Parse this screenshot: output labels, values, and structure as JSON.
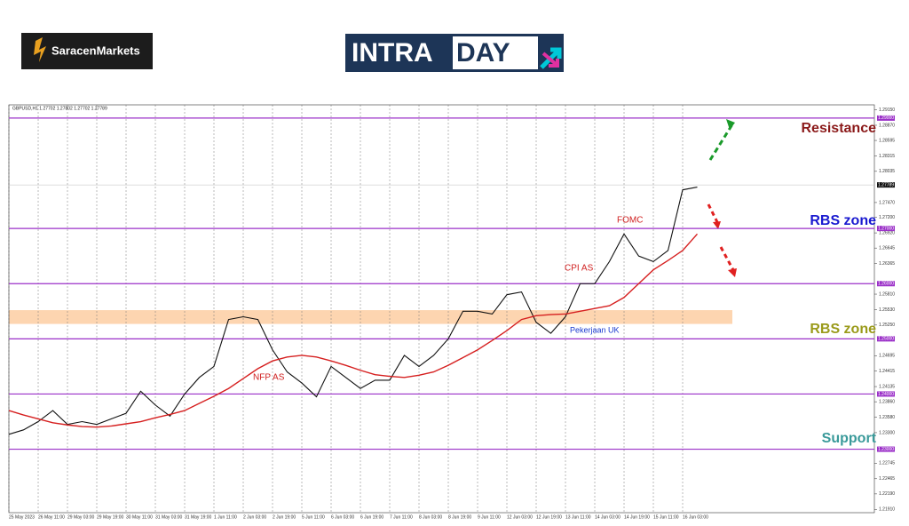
{
  "brand": "SaracenMarkets",
  "banner": {
    "left": "INTRA",
    "right": "DAY"
  },
  "chart_data": {
    "type": "line",
    "header": "GBPUSD,H1  1.27702 1.27802 1.27702 1.27789",
    "categories": [
      "25 May 2023",
      null,
      "26 May 11:00",
      null,
      "29 May 03:00",
      null,
      "29 May 19:00",
      null,
      "30 May 11:00",
      null,
      "31 May 03:00",
      null,
      "31 May 19:00",
      null,
      "1 Jun 11:00",
      null,
      "2 Jun 03:00",
      null,
      "2 Jun 19:00",
      null,
      "5 Jun 11:00",
      null,
      "6 Jun 03:00",
      null,
      "6 Jun 19:00",
      null,
      "7 Jun 11:00",
      null,
      "8 Jun 03:00",
      null,
      "8 Jun 19:00",
      null,
      "9 Jun 11:00",
      null,
      "12 Jun 03:00",
      null,
      "12 Jun 19:00",
      null,
      "13 Jun 11:00",
      null,
      "14 Jun 03:00",
      null,
      "14 Jun 19:00",
      null,
      "15 Jun 11:00",
      null,
      "16 Jun 03:00",
      null
    ],
    "series": [
      {
        "color": "#111111",
        "values": [
          1.2327,
          1.2335,
          1.235,
          1.237,
          1.2345,
          1.235,
          1.2345,
          1.2355,
          1.2365,
          1.2405,
          1.238,
          1.236,
          1.24,
          1.243,
          1.245,
          1.2535,
          1.254,
          1.2535,
          1.248,
          1.244,
          1.242,
          1.2395,
          1.245,
          1.243,
          1.241,
          1.2425,
          1.2425,
          1.247,
          1.245,
          1.247,
          1.25,
          1.255,
          1.255,
          1.2545,
          1.258,
          1.2585,
          1.253,
          1.251,
          1.254,
          1.26,
          1.26,
          1.264,
          1.269,
          1.265,
          1.264,
          1.266,
          1.277,
          1.2775
        ]
      },
      {
        "color": "#d62020",
        "values": [
          1.237,
          1.2362,
          1.2355,
          1.2348,
          1.2344,
          1.2341,
          1.234,
          1.2342,
          1.2346,
          1.235,
          1.2357,
          1.2363,
          1.237,
          1.2383,
          1.2396,
          1.241,
          1.2428,
          1.2446,
          1.246,
          1.2467,
          1.247,
          1.2467,
          1.246,
          1.2452,
          1.2443,
          1.2435,
          1.2432,
          1.243,
          1.2434,
          1.244,
          1.2452,
          1.2466,
          1.248,
          1.2497,
          1.2515,
          1.2535,
          1.2542,
          1.2544,
          1.2545,
          1.255,
          1.2555,
          1.256,
          1.2575,
          1.26,
          1.2625,
          1.2642,
          1.266,
          1.269
        ]
      }
    ],
    "ylim": [
      1.2185,
      1.2924
    ],
    "yticks": [
      {
        "value": 1.2915,
        "label": "1.29150"
      },
      {
        "value": 1.2887,
        "label": "1.28870"
      },
      {
        "value": 1.28595,
        "label": "1.28595"
      },
      {
        "value": 1.28315,
        "label": "1.28315"
      },
      {
        "value": 1.28035,
        "label": "1.28035"
      },
      {
        "value": 1.2747,
        "label": "1.27470"
      },
      {
        "value": 1.272,
        "label": "1.27200"
      },
      {
        "value": 1.2692,
        "label": "1.26920"
      },
      {
        "value": 1.26645,
        "label": "1.26645"
      },
      {
        "value": 1.26365,
        "label": "1.26365"
      },
      {
        "value": 1.2581,
        "label": "1.25810"
      },
      {
        "value": 1.2553,
        "label": "1.25530"
      },
      {
        "value": 1.2525,
        "label": "1.25250"
      },
      {
        "value": 1.24695,
        "label": "1.24695"
      },
      {
        "value": 1.24415,
        "label": "1.24415"
      },
      {
        "value": 1.24135,
        "label": "1.24135"
      },
      {
        "value": 1.2386,
        "label": "1.23860"
      },
      {
        "value": 1.2358,
        "label": "1.23580"
      },
      {
        "value": 1.233,
        "label": "1.23300"
      },
      {
        "value": 1.22745,
        "label": "1.22745"
      },
      {
        "value": 1.22465,
        "label": "1.22465"
      },
      {
        "value": 1.2219,
        "label": "1.22190"
      },
      {
        "value": 1.2191,
        "label": "1.21910"
      }
    ],
    "levels": [
      {
        "value": 1.29,
        "label": "1.29000"
      },
      {
        "value": 1.27,
        "label": "1.27000"
      },
      {
        "value": 1.26,
        "label": "1.26000"
      },
      {
        "value": 1.25,
        "label": "1.25000"
      },
      {
        "value": 1.24,
        "label": "1.24000"
      },
      {
        "value": 1.23,
        "label": "1.23000"
      }
    ],
    "level_color": "#9b30c8",
    "current_price": {
      "value": 1.27789,
      "label": "1.27789"
    },
    "zone": [
      1.2527,
      1.2552
    ],
    "zone_color": "#fdd5b0",
    "zone_labels": [
      "Resistance",
      "RBS zone",
      "RBS zone",
      "Support"
    ],
    "events": [
      "FOMC",
      "CPI AS",
      "NFP AS",
      "Pekerjaan UK"
    ],
    "grid": true
  }
}
